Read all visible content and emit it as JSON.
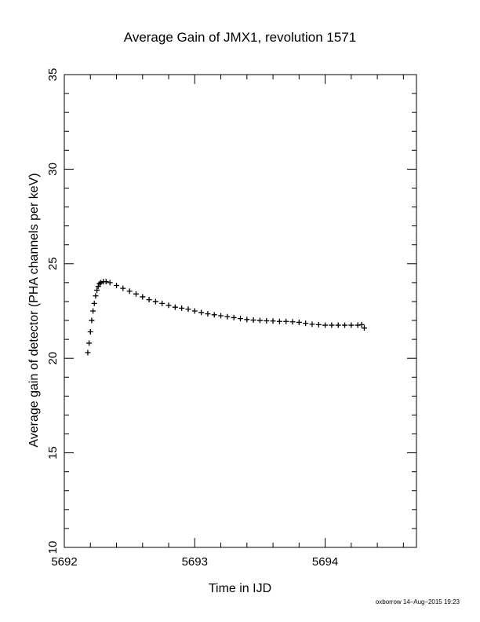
{
  "chart_data": {
    "type": "scatter",
    "title": "Average Gain of JMX1, revolution 1571",
    "xlabel": "Time in IJD",
    "ylabel": "Average gain of detector (PHA channels per keV)",
    "xlim": [
      5692,
      5694.7
    ],
    "ylim": [
      10,
      35
    ],
    "xticks": [
      5692,
      5693,
      5694
    ],
    "yticks": [
      10,
      15,
      20,
      25,
      30,
      35
    ],
    "marker": "+",
    "series": [
      {
        "x": [
          5692.18,
          5692.19,
          5692.2,
          5692.21,
          5692.22,
          5692.23,
          5692.24,
          5692.25,
          5692.26,
          5692.27,
          5692.28,
          5692.3,
          5692.32,
          5692.35,
          5692.4,
          5692.45,
          5692.5,
          5692.55,
          5692.6,
          5692.65,
          5692.7,
          5692.75,
          5692.8,
          5692.85,
          5692.9,
          5692.95,
          5693.0,
          5693.05,
          5693.1,
          5693.15,
          5693.2,
          5693.25,
          5693.3,
          5693.35,
          5693.4,
          5693.45,
          5693.5,
          5693.55,
          5693.6,
          5693.65,
          5693.7,
          5693.75,
          5693.8,
          5693.85,
          5693.9,
          5693.95,
          5694.0,
          5694.05,
          5694.1,
          5694.15,
          5694.2,
          5694.25,
          5694.28,
          5694.3
        ],
        "y": [
          20.3,
          20.8,
          21.4,
          22.0,
          22.5,
          22.9,
          23.3,
          23.6,
          23.8,
          23.95,
          24.0,
          24.05,
          24.05,
          24.0,
          23.85,
          23.7,
          23.55,
          23.4,
          23.25,
          23.1,
          23.0,
          22.9,
          22.8,
          22.7,
          22.65,
          22.6,
          22.5,
          22.42,
          22.35,
          22.3,
          22.25,
          22.2,
          22.15,
          22.1,
          22.05,
          22.02,
          22.0,
          21.98,
          21.97,
          21.95,
          21.95,
          21.93,
          21.9,
          21.85,
          21.8,
          21.78,
          21.75,
          21.75,
          21.75,
          21.75,
          21.75,
          21.75,
          21.78,
          21.6
        ]
      }
    ]
  },
  "footer": {
    "credit": "oxborrow 14–Aug–2015 19:23"
  }
}
